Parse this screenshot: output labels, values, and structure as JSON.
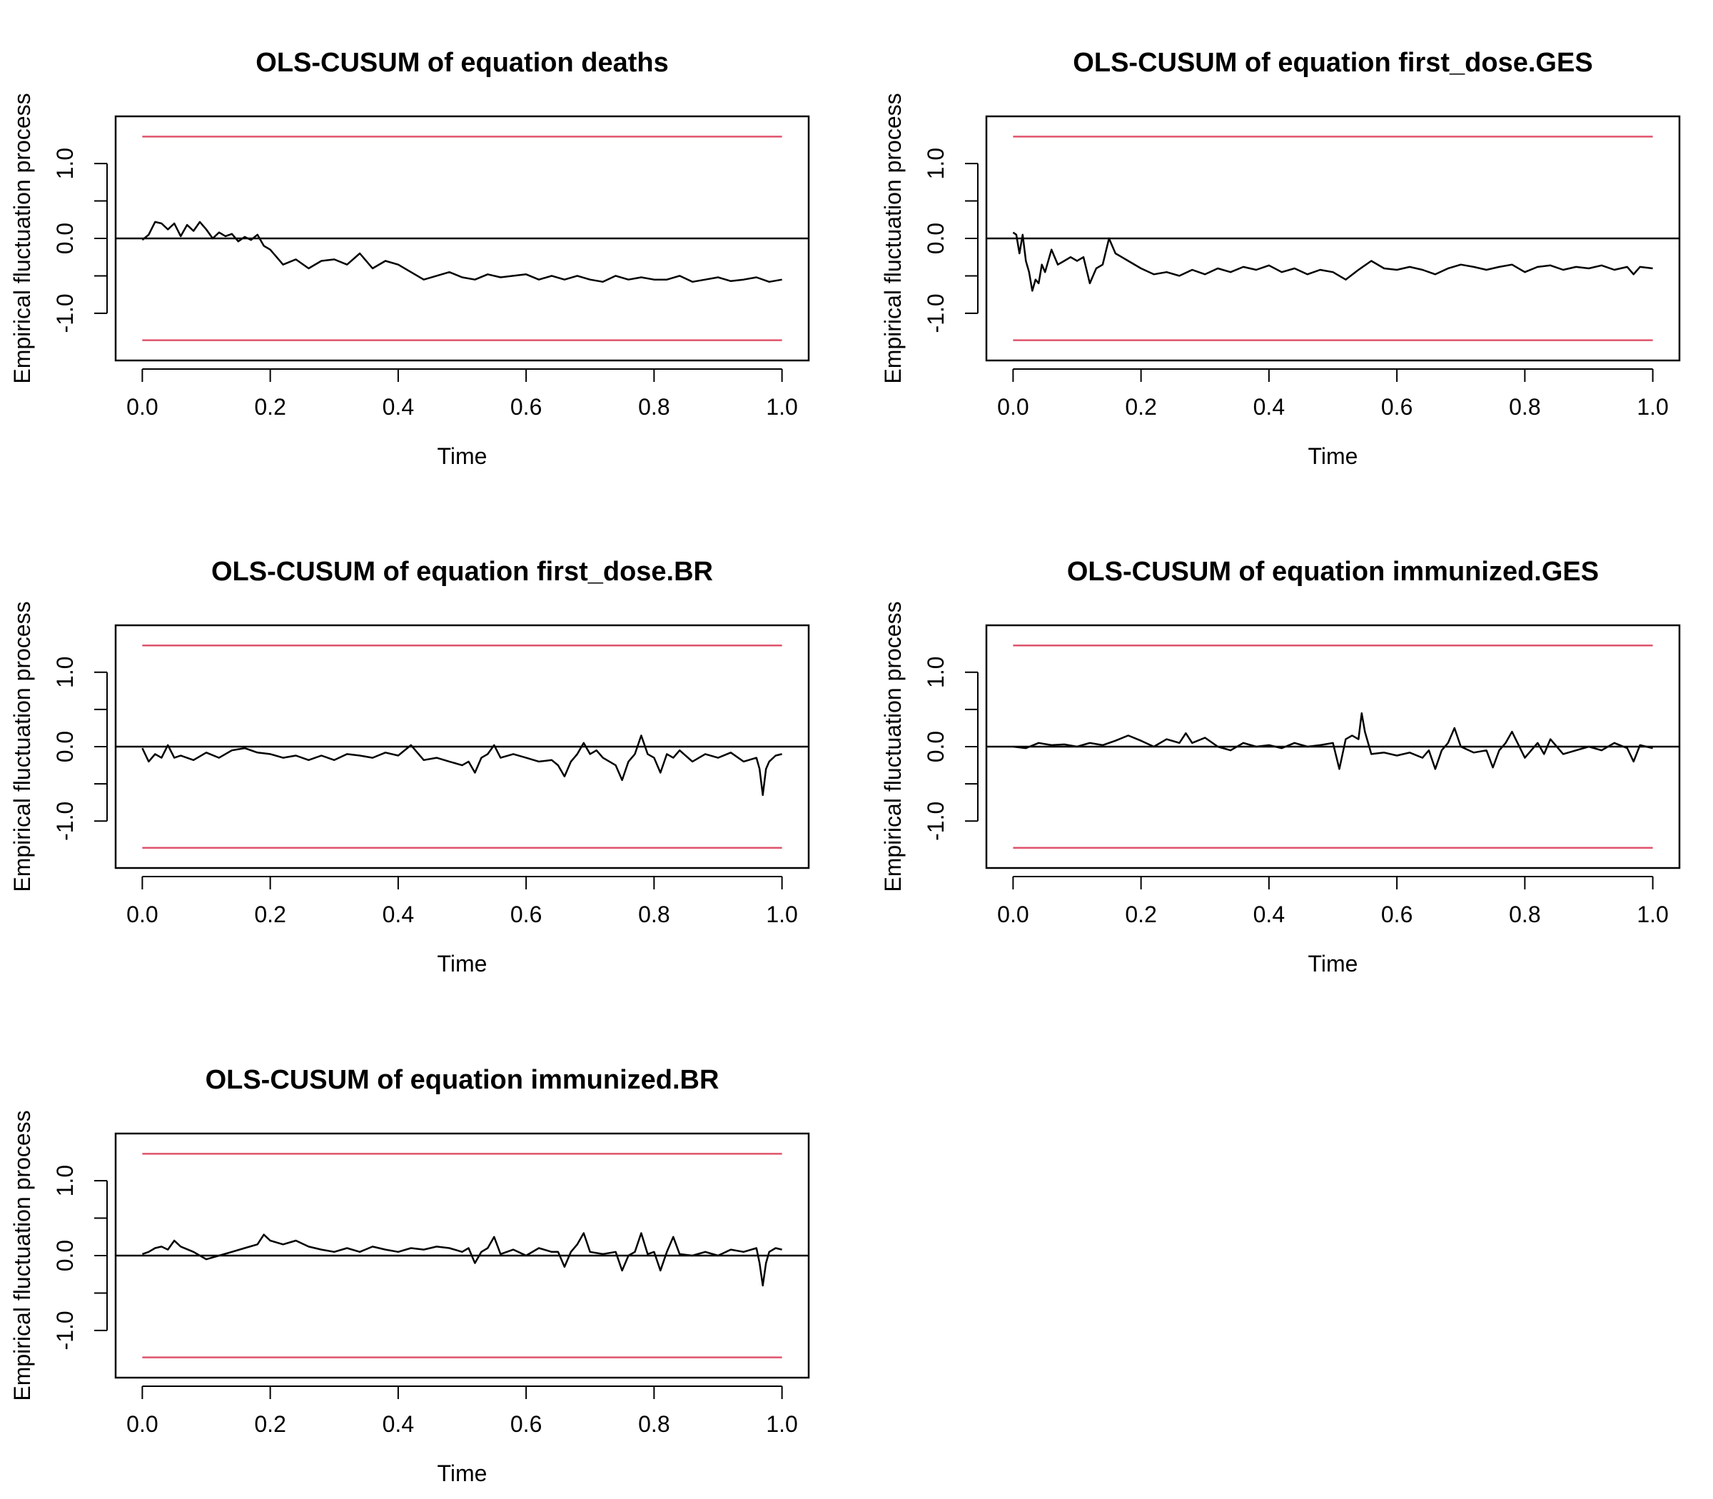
{
  "colors": {
    "bound": "#df536b",
    "series": "#000000",
    "axis": "#000000"
  },
  "chart_data": [
    {
      "type": "line",
      "title": "OLS-CUSUM of equation deaths",
      "xlabel": "Time",
      "ylabel": "Empirical fluctuation process",
      "xlim": [
        0,
        1
      ],
      "ylim": [
        -1.5,
        1.5
      ],
      "xticks": [
        0,
        0.2,
        0.4,
        0.6,
        0.8,
        1.0
      ],
      "xtick_labels": [
        "0.0",
        "0.2",
        "0.4",
        "0.6",
        "0.8",
        "1.0"
      ],
      "yticks": [
        -1,
        -0.5,
        0,
        0.5,
        1
      ],
      "ytick_labels": [
        "-1.0",
        "",
        "0.0",
        "",
        "1.0"
      ],
      "boundaries": [
        1.36,
        -1.36
      ],
      "reference_line": 0,
      "x": [
        0,
        0.01,
        0.02,
        0.03,
        0.04,
        0.05,
        0.06,
        0.07,
        0.08,
        0.09,
        0.1,
        0.11,
        0.12,
        0.13,
        0.14,
        0.15,
        0.16,
        0.17,
        0.18,
        0.19,
        0.2,
        0.21,
        0.22,
        0.24,
        0.26,
        0.28,
        0.3,
        0.32,
        0.34,
        0.36,
        0.38,
        0.4,
        0.42,
        0.44,
        0.46,
        0.48,
        0.5,
        0.52,
        0.54,
        0.56,
        0.58,
        0.6,
        0.62,
        0.64,
        0.66,
        0.68,
        0.7,
        0.72,
        0.74,
        0.76,
        0.78,
        0.8,
        0.82,
        0.84,
        0.86,
        0.88,
        0.9,
        0.92,
        0.94,
        0.96,
        0.98,
        1.0
      ],
      "y": [
        -0.02,
        0.05,
        0.22,
        0.2,
        0.12,
        0.2,
        0.03,
        0.18,
        0.1,
        0.22,
        0.12,
        0.0,
        0.08,
        0.03,
        0.06,
        -0.04,
        0.02,
        -0.02,
        0.05,
        -0.1,
        -0.15,
        -0.25,
        -0.35,
        -0.28,
        -0.4,
        -0.3,
        -0.28,
        -0.35,
        -0.2,
        -0.4,
        -0.3,
        -0.35,
        -0.45,
        -0.55,
        -0.5,
        -0.45,
        -0.52,
        -0.55,
        -0.48,
        -0.52,
        -0.5,
        -0.48,
        -0.55,
        -0.5,
        -0.55,
        -0.5,
        -0.55,
        -0.58,
        -0.5,
        -0.55,
        -0.52,
        -0.55,
        -0.55,
        -0.5,
        -0.58,
        -0.55,
        -0.52,
        -0.57,
        -0.55,
        -0.52,
        -0.58,
        -0.55
      ]
    },
    {
      "type": "line",
      "title": "OLS-CUSUM of equation first_dose.GES",
      "xlabel": "Time",
      "ylabel": "Empirical fluctuation process",
      "xlim": [
        0,
        1
      ],
      "ylim": [
        -1.5,
        1.5
      ],
      "xticks": [
        0,
        0.2,
        0.4,
        0.6,
        0.8,
        1.0
      ],
      "xtick_labels": [
        "0.0",
        "0.2",
        "0.4",
        "0.6",
        "0.8",
        "1.0"
      ],
      "yticks": [
        -1,
        -0.5,
        0,
        0.5,
        1
      ],
      "ytick_labels": [
        "-1.0",
        "",
        "0.0",
        "",
        "1.0"
      ],
      "boundaries": [
        1.36,
        -1.36
      ],
      "reference_line": 0,
      "x": [
        0,
        0.005,
        0.01,
        0.015,
        0.02,
        0.025,
        0.03,
        0.035,
        0.04,
        0.045,
        0.05,
        0.06,
        0.07,
        0.08,
        0.09,
        0.1,
        0.11,
        0.12,
        0.13,
        0.14,
        0.15,
        0.16,
        0.17,
        0.18,
        0.2,
        0.22,
        0.24,
        0.26,
        0.28,
        0.3,
        0.32,
        0.34,
        0.36,
        0.38,
        0.4,
        0.42,
        0.44,
        0.46,
        0.48,
        0.5,
        0.52,
        0.54,
        0.56,
        0.58,
        0.6,
        0.62,
        0.64,
        0.66,
        0.68,
        0.7,
        0.72,
        0.74,
        0.76,
        0.78,
        0.8,
        0.82,
        0.84,
        0.86,
        0.88,
        0.9,
        0.92,
        0.94,
        0.96,
        0.97,
        0.98,
        1.0
      ],
      "y": [
        0.08,
        0.05,
        -0.2,
        0.05,
        -0.3,
        -0.45,
        -0.7,
        -0.55,
        -0.6,
        -0.35,
        -0.45,
        -0.15,
        -0.35,
        -0.3,
        -0.25,
        -0.3,
        -0.25,
        -0.6,
        -0.4,
        -0.35,
        0.0,
        -0.2,
        -0.25,
        -0.3,
        -0.4,
        -0.48,
        -0.45,
        -0.5,
        -0.42,
        -0.48,
        -0.4,
        -0.45,
        -0.38,
        -0.42,
        -0.36,
        -0.45,
        -0.4,
        -0.48,
        -0.42,
        -0.45,
        -0.55,
        -0.42,
        -0.3,
        -0.4,
        -0.42,
        -0.38,
        -0.42,
        -0.48,
        -0.4,
        -0.35,
        -0.38,
        -0.42,
        -0.38,
        -0.35,
        -0.45,
        -0.38,
        -0.36,
        -0.42,
        -0.38,
        -0.4,
        -0.36,
        -0.42,
        -0.38,
        -0.48,
        -0.38,
        -0.4
      ]
    },
    {
      "type": "line",
      "title": "OLS-CUSUM of equation first_dose.BR",
      "xlabel": "Time",
      "ylabel": "Empirical fluctuation process",
      "xlim": [
        0,
        1
      ],
      "ylim": [
        -1.5,
        1.5
      ],
      "xticks": [
        0,
        0.2,
        0.4,
        0.6,
        0.8,
        1.0
      ],
      "xtick_labels": [
        "0.0",
        "0.2",
        "0.4",
        "0.6",
        "0.8",
        "1.0"
      ],
      "yticks": [
        -1,
        -0.5,
        0,
        0.5,
        1
      ],
      "ytick_labels": [
        "-1.0",
        "",
        "0.0",
        "",
        "1.0"
      ],
      "boundaries": [
        1.36,
        -1.36
      ],
      "reference_line": 0,
      "x": [
        0,
        0.01,
        0.02,
        0.03,
        0.04,
        0.05,
        0.06,
        0.08,
        0.1,
        0.12,
        0.14,
        0.16,
        0.18,
        0.2,
        0.22,
        0.24,
        0.26,
        0.28,
        0.3,
        0.32,
        0.34,
        0.36,
        0.38,
        0.4,
        0.42,
        0.44,
        0.46,
        0.48,
        0.5,
        0.51,
        0.52,
        0.53,
        0.54,
        0.55,
        0.56,
        0.58,
        0.6,
        0.62,
        0.64,
        0.65,
        0.66,
        0.67,
        0.68,
        0.69,
        0.7,
        0.71,
        0.72,
        0.74,
        0.75,
        0.76,
        0.77,
        0.78,
        0.79,
        0.8,
        0.81,
        0.82,
        0.83,
        0.84,
        0.86,
        0.88,
        0.9,
        0.92,
        0.94,
        0.96,
        0.965,
        0.97,
        0.975,
        0.98,
        0.99,
        1.0
      ],
      "y": [
        -0.02,
        -0.2,
        -0.1,
        -0.15,
        0.02,
        -0.15,
        -0.12,
        -0.18,
        -0.08,
        -0.15,
        -0.05,
        -0.02,
        -0.08,
        -0.1,
        -0.15,
        -0.12,
        -0.18,
        -0.12,
        -0.18,
        -0.1,
        -0.12,
        -0.15,
        -0.08,
        -0.12,
        0.02,
        -0.18,
        -0.15,
        -0.2,
        -0.25,
        -0.2,
        -0.35,
        -0.15,
        -0.1,
        0.02,
        -0.15,
        -0.1,
        -0.15,
        -0.2,
        -0.18,
        -0.25,
        -0.4,
        -0.2,
        -0.1,
        0.05,
        -0.1,
        -0.05,
        -0.15,
        -0.25,
        -0.45,
        -0.2,
        -0.1,
        0.15,
        -0.1,
        -0.15,
        -0.35,
        -0.1,
        -0.15,
        -0.05,
        -0.2,
        -0.1,
        -0.15,
        -0.08,
        -0.2,
        -0.15,
        -0.3,
        -0.65,
        -0.3,
        -0.2,
        -0.12,
        -0.1
      ]
    },
    {
      "type": "line",
      "title": "OLS-CUSUM of equation immunized.GES",
      "xlabel": "Time",
      "ylabel": "Empirical fluctuation process",
      "xlim": [
        0,
        1
      ],
      "ylim": [
        -1.5,
        1.5
      ],
      "xticks": [
        0,
        0.2,
        0.4,
        0.6,
        0.8,
        1.0
      ],
      "xtick_labels": [
        "0.0",
        "0.2",
        "0.4",
        "0.6",
        "0.8",
        "1.0"
      ],
      "yticks": [
        -1,
        -0.5,
        0,
        0.5,
        1
      ],
      "ytick_labels": [
        "-1.0",
        "",
        "0.0",
        "",
        "1.0"
      ],
      "boundaries": [
        1.36,
        -1.36
      ],
      "reference_line": 0,
      "x": [
        0,
        0.02,
        0.04,
        0.06,
        0.08,
        0.1,
        0.12,
        0.14,
        0.16,
        0.18,
        0.2,
        0.22,
        0.24,
        0.26,
        0.27,
        0.28,
        0.3,
        0.32,
        0.34,
        0.36,
        0.38,
        0.4,
        0.42,
        0.44,
        0.46,
        0.48,
        0.5,
        0.51,
        0.52,
        0.53,
        0.54,
        0.545,
        0.55,
        0.56,
        0.58,
        0.6,
        0.62,
        0.64,
        0.65,
        0.66,
        0.67,
        0.68,
        0.69,
        0.7,
        0.72,
        0.74,
        0.75,
        0.76,
        0.77,
        0.78,
        0.8,
        0.82,
        0.83,
        0.84,
        0.86,
        0.88,
        0.9,
        0.92,
        0.94,
        0.96,
        0.97,
        0.98,
        1.0
      ],
      "y": [
        0.0,
        -0.02,
        0.05,
        0.02,
        0.03,
        0.0,
        0.05,
        0.02,
        0.08,
        0.15,
        0.08,
        0.0,
        0.1,
        0.05,
        0.18,
        0.05,
        0.12,
        0.0,
        -0.05,
        0.05,
        0.0,
        0.02,
        -0.02,
        0.05,
        0.0,
        0.02,
        0.05,
        -0.3,
        0.1,
        0.15,
        0.1,
        0.45,
        0.2,
        -0.1,
        -0.08,
        -0.12,
        -0.08,
        -0.15,
        -0.05,
        -0.3,
        -0.05,
        0.05,
        0.25,
        0.0,
        -0.08,
        -0.05,
        -0.28,
        -0.05,
        0.05,
        0.2,
        -0.15,
        0.05,
        -0.1,
        0.1,
        -0.1,
        -0.05,
        0.0,
        -0.05,
        0.05,
        -0.02,
        -0.2,
        0.02,
        -0.02
      ]
    },
    {
      "type": "line",
      "title": "OLS-CUSUM of equation immunized.BR",
      "xlabel": "Time",
      "ylabel": "Empirical fluctuation process",
      "xlim": [
        0,
        1
      ],
      "ylim": [
        -1.5,
        1.5
      ],
      "xticks": [
        0,
        0.2,
        0.4,
        0.6,
        0.8,
        1.0
      ],
      "xtick_labels": [
        "0.0",
        "0.2",
        "0.4",
        "0.6",
        "0.8",
        "1.0"
      ],
      "yticks": [
        -1,
        -0.5,
        0,
        0.5,
        1
      ],
      "ytick_labels": [
        "-1.0",
        "",
        "0.0",
        "",
        "1.0"
      ],
      "boundaries": [
        1.36,
        -1.36
      ],
      "reference_line": 0,
      "x": [
        0,
        0.01,
        0.02,
        0.03,
        0.04,
        0.05,
        0.06,
        0.08,
        0.1,
        0.12,
        0.14,
        0.16,
        0.18,
        0.19,
        0.2,
        0.22,
        0.24,
        0.26,
        0.28,
        0.3,
        0.32,
        0.34,
        0.36,
        0.38,
        0.4,
        0.42,
        0.44,
        0.46,
        0.48,
        0.5,
        0.51,
        0.52,
        0.53,
        0.54,
        0.55,
        0.56,
        0.58,
        0.6,
        0.62,
        0.64,
        0.65,
        0.66,
        0.67,
        0.68,
        0.69,
        0.7,
        0.72,
        0.74,
        0.75,
        0.76,
        0.77,
        0.78,
        0.79,
        0.8,
        0.81,
        0.82,
        0.83,
        0.84,
        0.86,
        0.88,
        0.9,
        0.92,
        0.94,
        0.96,
        0.965,
        0.97,
        0.975,
        0.98,
        0.99,
        1.0
      ],
      "y": [
        0.02,
        0.05,
        0.1,
        0.12,
        0.08,
        0.2,
        0.12,
        0.05,
        -0.05,
        0.0,
        0.05,
        0.1,
        0.15,
        0.28,
        0.2,
        0.15,
        0.2,
        0.12,
        0.08,
        0.05,
        0.1,
        0.05,
        0.12,
        0.08,
        0.05,
        0.1,
        0.08,
        0.12,
        0.1,
        0.05,
        0.1,
        -0.1,
        0.05,
        0.1,
        0.25,
        0.02,
        0.08,
        0.0,
        0.1,
        0.05,
        0.05,
        -0.15,
        0.05,
        0.15,
        0.3,
        0.05,
        0.02,
        0.05,
        -0.2,
        0.0,
        0.05,
        0.3,
        0.02,
        0.05,
        -0.2,
        0.05,
        0.25,
        0.02,
        0.0,
        0.05,
        0.0,
        0.08,
        0.05,
        0.1,
        -0.1,
        -0.4,
        -0.1,
        0.05,
        0.1,
        0.08
      ]
    }
  ]
}
